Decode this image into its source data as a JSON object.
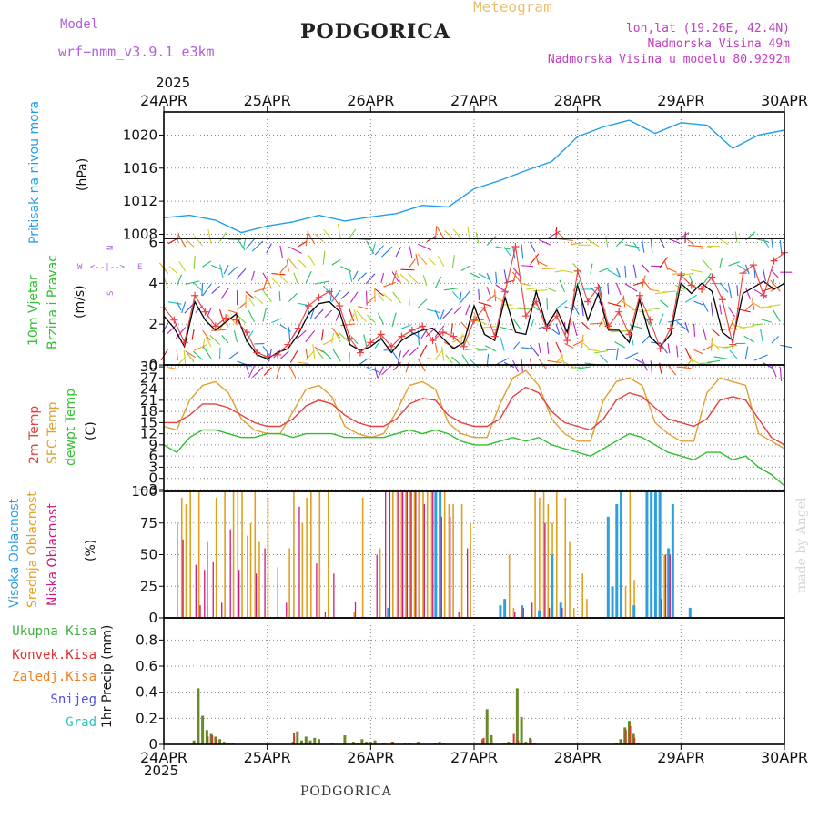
{
  "header": {
    "model_label": "Model",
    "model_value": "wrf−nmm_v3.9.1  e3km",
    "title": "PODGORICA",
    "subtitle": "Meteogram",
    "coords": "lon,lat (19.26E, 42.4N)",
    "elevation": "Nadmorska Visina 49m",
    "model_elevation": "Nadmorska Visina u modelu 80.9292m",
    "footer_title": "PODGORICA",
    "credit": "made by Angel"
  },
  "colors": {
    "pressure": "#1e9ef0",
    "temp2m": "#e84040",
    "sfc": "#e0a030",
    "dewpt": "#30c030",
    "cloud_high": "#2ea0e0",
    "cloud_mid": "#e0a020",
    "cloud_low": "#d01880",
    "total_precip": "#40b040",
    "conv": "#e03030",
    "frozen": "#f08020",
    "snow": "#5050e0",
    "hail": "#30c0c0",
    "model": "#b060e0",
    "info": "#c040c0",
    "meteogram": "#e8c070",
    "wind_speed": "#000000",
    "gust": "#e84040"
  },
  "chart_data": {
    "time_axis": {
      "year": "2025",
      "labels": [
        "24APR",
        "25APR",
        "26APR",
        "27APR",
        "28APR",
        "29APR",
        "30APR"
      ],
      "start": "2025-04-24T00",
      "step_hours": 1,
      "n_hours": 144
    },
    "pressure": {
      "type": "line",
      "label": "Pritisak na nivou mora",
      "unit": "(hPa)",
      "ylim": [
        1007.5,
        1022.8
      ],
      "ticks": [
        1008,
        1012,
        1016,
        1020
      ],
      "x_days": [
        0,
        0.25,
        0.5,
        0.75,
        1,
        1.25,
        1.5,
        1.75,
        2,
        2.25,
        2.5,
        2.75,
        3,
        3.25,
        3.5,
        3.75,
        4,
        4.25,
        4.5,
        4.75,
        5,
        5.25,
        5.5,
        5.75,
        6
      ],
      "values": [
        1010,
        1010.3,
        1009.7,
        1008.2,
        1009,
        1009.5,
        1010.3,
        1009.6,
        1010.1,
        1010.5,
        1011.5,
        1011.3,
        1013.5,
        1014.5,
        1015.7,
        1016.8,
        1019.8,
        1021,
        1021.8,
        1020.2,
        1021.5,
        1021.2,
        1018.4,
        1020,
        1020.6
      ]
    },
    "wind": {
      "type": "line",
      "label_1": "10m Vjetar",
      "label_2": "Brzina i Pravac",
      "unit": "(m/s)",
      "compass_ns": "N",
      "compass_w": "W",
      "compass_e": "E",
      "compass_s": "S",
      "ylim": [
        0,
        6.2
      ],
      "ticks": [
        0,
        2,
        4,
        6
      ],
      "x_days": [
        0,
        0.1,
        0.2,
        0.3,
        0.4,
        0.5,
        0.6,
        0.7,
        0.8,
        0.9,
        1,
        1.1,
        1.2,
        1.3,
        1.4,
        1.5,
        1.6,
        1.7,
        1.8,
        1.9,
        2,
        2.1,
        2.2,
        2.3,
        2.4,
        2.5,
        2.6,
        2.7,
        2.8,
        2.9,
        3,
        3.1,
        3.2,
        3.3,
        3.4,
        3.5,
        3.6,
        3.7,
        3.8,
        3.9,
        4,
        4.1,
        4.2,
        4.3,
        4.4,
        4.5,
        4.6,
        4.7,
        4.8,
        4.9,
        5,
        5.1,
        5.2,
        5.3,
        5.4,
        5.5,
        5.6,
        5.7,
        5.8,
        5.9,
        6
      ],
      "speed": [
        2.4,
        1.8,
        0.9,
        3.1,
        2.2,
        1.7,
        2.1,
        2.5,
        1.2,
        0.5,
        0.3,
        0.6,
        0.8,
        1.5,
        2.5,
        3,
        3.1,
        2.6,
        1,
        0.7,
        0.9,
        1.3,
        0.6,
        1.2,
        1.5,
        1.7,
        1.8,
        1.3,
        0.8,
        1.1,
        2.9,
        1.5,
        1.2,
        3.3,
        1.6,
        1.5,
        3.6,
        1.9,
        2.7,
        1.6,
        3.9,
        2.2,
        3.5,
        1.7,
        1.7,
        1.1,
        3.2,
        1.4,
        0.9,
        1.5,
        4,
        3.5,
        4,
        3.6,
        1.6,
        1.2,
        3.5,
        3.8,
        4.1,
        3.7,
        4
      ],
      "gust": [
        2.8,
        2.2,
        1.1,
        3.4,
        2.6,
        1.9,
        2.3,
        2.2,
        1.6,
        0.6,
        0.4,
        0.5,
        1,
        1.8,
        2.9,
        3.3,
        3.6,
        2.9,
        1.3,
        0.6,
        1.1,
        1.5,
        0.9,
        1.4,
        1.7,
        1.9,
        1.2,
        1.6,
        1.4,
        0.9,
        2.2,
        2.8,
        1.4,
        3.6,
        5.8,
        2.4,
        3.1,
        1.8,
        2.4,
        1.2,
        4.6,
        3.1,
        3.8,
        1.9,
        2.6,
        1.5,
        3.4,
        2.2,
        0.8,
        1.8,
        4.4,
        3.9,
        3.7,
        4.3,
        3.2,
        1,
        4.5,
        4.9,
        3.4,
        5.1,
        5.5
      ],
      "arrow_rows": [
        6,
        4.7,
        3.8,
        2.9,
        1.9,
        0.9,
        0.1
      ]
    },
    "temperature": {
      "type": "line",
      "label_1": "2m Temp",
      "label_2": "SFC Temp",
      "label_3": "dewpt Temp",
      "unit": "(C)",
      "ylim": [
        -3.5,
        30.5
      ],
      "ticks": [
        -3,
        0,
        3,
        6,
        9,
        12,
        15,
        18,
        21,
        24,
        27,
        30
      ],
      "x_days": [
        0,
        0.125,
        0.25,
        0.375,
        0.5,
        0.625,
        0.75,
        0.875,
        1,
        1.125,
        1.25,
        1.375,
        1.5,
        1.625,
        1.75,
        1.875,
        2,
        2.125,
        2.25,
        2.375,
        2.5,
        2.625,
        2.75,
        2.875,
        3,
        3.125,
        3.25,
        3.375,
        3.5,
        3.625,
        3.75,
        3.875,
        4,
        4.125,
        4.25,
        4.375,
        4.5,
        4.625,
        4.75,
        4.875,
        5,
        5.125,
        5.25,
        5.375,
        5.5,
        5.625,
        5.75,
        5.875,
        6
      ],
      "temp2m": [
        15,
        15,
        17,
        20,
        20,
        19,
        17,
        15,
        14,
        14,
        16,
        19.5,
        21,
        20,
        17,
        15,
        14,
        14,
        16,
        20,
        21.5,
        21,
        17,
        15,
        14,
        14,
        16,
        22,
        24.5,
        23,
        18,
        15,
        14,
        13,
        16,
        21,
        23,
        22,
        19,
        16,
        15,
        14,
        16,
        21,
        22,
        21,
        16,
        11,
        9
      ],
      "sfc": [
        14,
        13,
        21,
        25,
        26,
        23,
        16,
        13,
        12,
        12,
        18,
        24,
        25,
        22,
        14,
        12,
        11,
        12,
        18,
        25,
        26,
        24,
        15,
        12,
        11,
        11,
        20,
        27,
        29,
        25,
        16,
        12,
        10,
        10,
        21,
        26,
        27,
        25,
        15,
        12,
        10,
        10,
        23,
        27,
        26,
        25,
        12,
        10,
        8
      ],
      "dewpt": [
        9,
        7,
        11,
        13,
        13,
        12,
        11,
        11,
        12,
        12,
        11,
        12,
        12,
        12,
        11,
        11,
        11,
        11,
        12,
        13,
        12,
        13,
        12,
        10,
        9,
        9,
        10,
        11,
        10,
        11,
        9,
        8,
        7,
        6,
        8,
        10,
        12,
        11,
        9,
        7,
        6,
        5,
        7,
        7,
        5,
        6,
        3,
        1,
        -2
      ]
    },
    "clouds": {
      "type": "bar",
      "label_1": "Visoka Oblacnost",
      "label_2": "Srednja Oblacnost",
      "label_3": "Niska Oblacnost",
      "unit": "(%)",
      "ylim": [
        0,
        100
      ],
      "ticks": [
        0,
        25,
        50,
        75,
        100
      ],
      "high": {
        "hours": [
          52,
          63,
          64,
          78,
          79,
          83,
          87,
          90,
          92,
          103,
          104,
          105,
          106,
          109,
          112,
          113,
          114,
          115,
          117,
          118,
          122
        ],
        "values": [
          8,
          100,
          100,
          10,
          15,
          10,
          6,
          50,
          12,
          80,
          25,
          90,
          100,
          10,
          100,
          100,
          100,
          100,
          55,
          90,
          8
        ]
      },
      "middle": {
        "hours": [
          3,
          4,
          5,
          6,
          8,
          10,
          12,
          14,
          16,
          17,
          18,
          20,
          21,
          22,
          24,
          29,
          30,
          32,
          33,
          34,
          36,
          38,
          44,
          46,
          50,
          53,
          54,
          55,
          56,
          57,
          58,
          59,
          60,
          61,
          62,
          64,
          65,
          66,
          67,
          69,
          71,
          80,
          81,
          86,
          87,
          88,
          89,
          90,
          91,
          93,
          94,
          95,
          97,
          98,
          107,
          108,
          109,
          115,
          116,
          117
        ],
        "values": [
          75,
          95,
          90,
          100,
          100,
          60,
          95,
          100,
          100,
          100,
          100,
          75,
          100,
          60,
          95,
          55,
          100,
          75,
          95,
          100,
          100,
          100,
          5,
          95,
          55,
          100,
          100,
          100,
          100,
          100,
          100,
          100,
          100,
          100,
          100,
          95,
          100,
          90,
          90,
          90,
          75,
          50,
          8,
          100,
          95,
          100,
          90,
          75,
          100,
          95,
          60,
          8,
          35,
          15,
          25,
          100,
          30,
          30,
          50,
          45
        ]
      },
      "low": {
        "hours": [
          4,
          7,
          8,
          9,
          11,
          13,
          15,
          17,
          19,
          21,
          23,
          26,
          28,
          31,
          35,
          37,
          39,
          44,
          49,
          51,
          52,
          54,
          55,
          56,
          57,
          58,
          60,
          62,
          64,
          66,
          68,
          70,
          81,
          83,
          85,
          88,
          89,
          92,
          115,
          116,
          117
        ],
        "values": [
          62,
          42,
          10,
          38,
          44,
          12,
          70,
          38,
          65,
          35,
          55,
          40,
          12,
          88,
          43,
          5,
          35,
          13,
          50,
          100,
          100,
          100,
          100,
          100,
          100,
          100,
          90,
          100,
          80,
          80,
          5,
          55,
          5,
          8,
          12,
          75,
          8,
          8,
          15,
          50,
          50
        ]
      }
    },
    "precip": {
      "type": "bar",
      "label_1": "Ukupna Kisa",
      "label_2": "Konvek.Kisa",
      "label_3": "Zaledj.Kisa",
      "label_4": "Snijeg",
      "label_5": "Grad",
      "unit": "1hr Precip (mm)",
      "ylim": [
        0,
        0.97
      ],
      "ticks": [
        "0",
        "0.2",
        "0.4",
        "0.6",
        "0.8"
      ],
      "total": {
        "hours": [
          7,
          8,
          9,
          10,
          11,
          12,
          13,
          14,
          15,
          16,
          30,
          31,
          32,
          33,
          34,
          35,
          36,
          39,
          42,
          44,
          45,
          46,
          47,
          48,
          49,
          51,
          53,
          56,
          57,
          59,
          63,
          64,
          65,
          74,
          75,
          76,
          79,
          80,
          81,
          82,
          83,
          84,
          85,
          86,
          105,
          106,
          107,
          108,
          109,
          110
        ],
        "values": [
          0.03,
          0.43,
          0.22,
          0.11,
          0.08,
          0.06,
          0.04,
          0.02,
          0.01,
          0.01,
          0.02,
          0.1,
          0.03,
          0.06,
          0.03,
          0.05,
          0.04,
          0.01,
          0.07,
          0.02,
          0.01,
          0.04,
          0.02,
          0.02,
          0.03,
          0.01,
          0.02,
          0.01,
          0.01,
          0.02,
          0.01,
          0.02,
          0.01,
          0.04,
          0.27,
          0.07,
          0.01,
          0.02,
          0.01,
          0.43,
          0.21,
          0.02,
          0.05,
          0.01,
          0.01,
          0.04,
          0.13,
          0.18,
          0.08,
          0.01
        ]
      },
      "conv": {
        "hours": [
          10,
          11,
          12,
          30,
          53,
          74,
          81,
          82,
          85,
          106,
          107,
          108,
          109
        ],
        "values": [
          0.06,
          0.07,
          0.04,
          0.09,
          0.02,
          0.05,
          0.08,
          0.03,
          0.04,
          0.03,
          0.11,
          0.14,
          0.05
        ]
      }
    }
  }
}
